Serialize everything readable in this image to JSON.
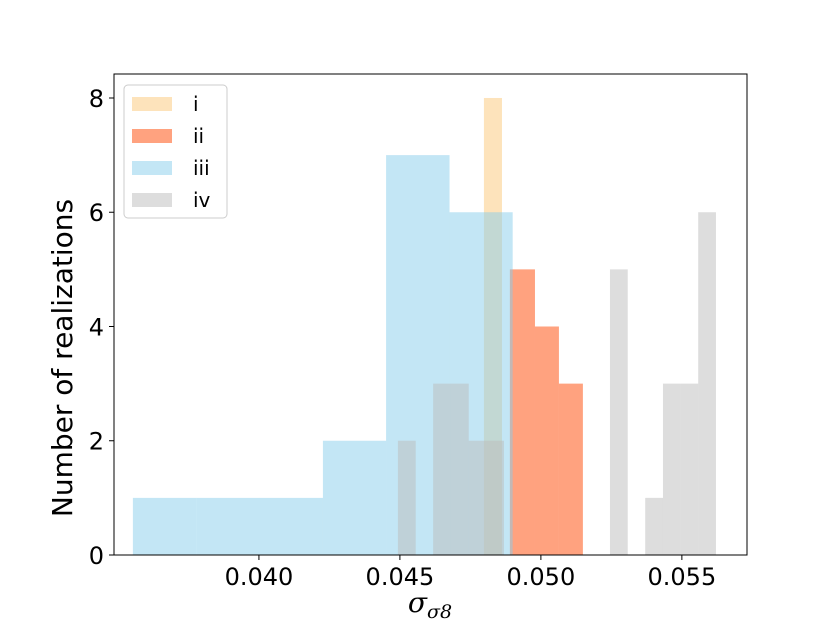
{
  "chart_data": {
    "type": "histogram",
    "xlabel": "σ",
    "xlabel_subscript": "σ8",
    "ylabel": "Number of realizations",
    "xlim": [
      0.03486,
      0.05731
    ],
    "ylim": [
      0,
      8.42
    ],
    "xticks": [
      {
        "value": 0.04,
        "label": "0.040"
      },
      0.045,
      {
        "value": 0.05,
        "label": "0.050"
      },
      0.055
    ],
    "yticks": [
      0,
      2,
      4,
      6,
      8
    ],
    "grid": false,
    "legend": "upper left",
    "series": [
      {
        "name": "i",
        "color": "#fbc777",
        "bins": [
          0.04798,
          0.04862
        ],
        "values": [
          8
        ]
      },
      {
        "name": "ii",
        "color": "#ff4500",
        "bins": [
          0.0489,
          0.04979,
          0.05064,
          0.05149
        ],
        "values": [
          5,
          4,
          3
        ]
      },
      {
        "name": "iii",
        "color": "#87ceeb",
        "bins": [
          0.03553,
          0.03778,
          0.04002,
          0.04227,
          0.04451,
          0.04676,
          0.049
        ],
        "values": [
          1,
          1,
          1,
          2,
          7,
          6
        ]
      },
      {
        "name": "iv",
        "color": "#bbbbbb",
        "bins": [
          0.04493,
          0.04556,
          0.04618,
          0.04681,
          0.04744,
          0.04806,
          0.04869,
          0.04932,
          0.04994,
          0.05057,
          0.0512,
          0.05182,
          0.05245,
          0.05308,
          0.0537,
          0.05433,
          0.05496,
          0.05558,
          0.05621
        ],
        "values": [
          2,
          0,
          3,
          3,
          2,
          2,
          0,
          0,
          0,
          0,
          0,
          0,
          5,
          0,
          1,
          3,
          3,
          6
        ]
      }
    ]
  }
}
